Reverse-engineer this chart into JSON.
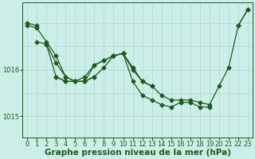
{
  "background_color": "#cceee8",
  "grid_color": "#aad8d0",
  "line_color": "#1a5c1a",
  "marker": "D",
  "marker_size": 2.5,
  "xlabel": "Graphe pression niveau de la mer (hPa)",
  "xlabel_fontsize": 7.5,
  "tick_fontsize": 6,
  "xlim": [
    -0.5,
    23.5
  ],
  "ylim": [
    1014.55,
    1017.45
  ],
  "yticks": [
    1015,
    1016
  ],
  "xticks": [
    0,
    1,
    2,
    3,
    4,
    5,
    6,
    7,
    8,
    9,
    10,
    11,
    12,
    13,
    14,
    15,
    16,
    17,
    18,
    19,
    20,
    21,
    22,
    23
  ],
  "series": [
    [
      1017.0,
      1016.95,
      null,
      null,
      null,
      null,
      null,
      null,
      null,
      null,
      1016.35,
      null,
      null,
      null,
      null,
      null,
      null,
      null,
      null,
      null,
      null,
      null,
      1016.95,
      1017.3
    ],
    [
      1016.95,
      1016.9,
      1016.6,
      1016.3,
      1015.85,
      1015.75,
      1015.75,
      1015.85,
      1016.05,
      1016.3,
      1016.35,
      1016.05,
      1015.75,
      1015.65,
      1015.45,
      1015.35,
      1015.35,
      1015.35,
      1015.3,
      1015.25,
      1015.65,
      1016.05,
      1016.95,
      1017.3
    ],
    [
      null,
      null,
      1016.55,
      1016.15,
      1015.85,
      1015.75,
      1015.85,
      1016.1,
      1016.2,
      1016.3,
      1016.35,
      1016.0,
      1015.75,
      1015.65,
      null,
      null,
      null,
      null,
      null,
      null,
      null,
      null,
      null,
      null
    ],
    [
      null,
      1016.6,
      1016.55,
      1015.85,
      1015.75,
      1015.75,
      1015.75,
      1016.1,
      1016.2,
      1016.3,
      1016.35,
      1015.75,
      1015.45,
      1015.35,
      1015.25,
      1015.2,
      1015.3,
      1015.3,
      1015.2,
      1015.2,
      null,
      null,
      null,
      null
    ],
    [
      null,
      null,
      null,
      1015.85,
      1015.75,
      1015.75,
      1015.75,
      1015.85,
      null,
      null,
      null,
      null,
      null,
      null,
      null,
      null,
      null,
      null,
      null,
      null,
      null,
      null,
      null,
      null
    ]
  ]
}
